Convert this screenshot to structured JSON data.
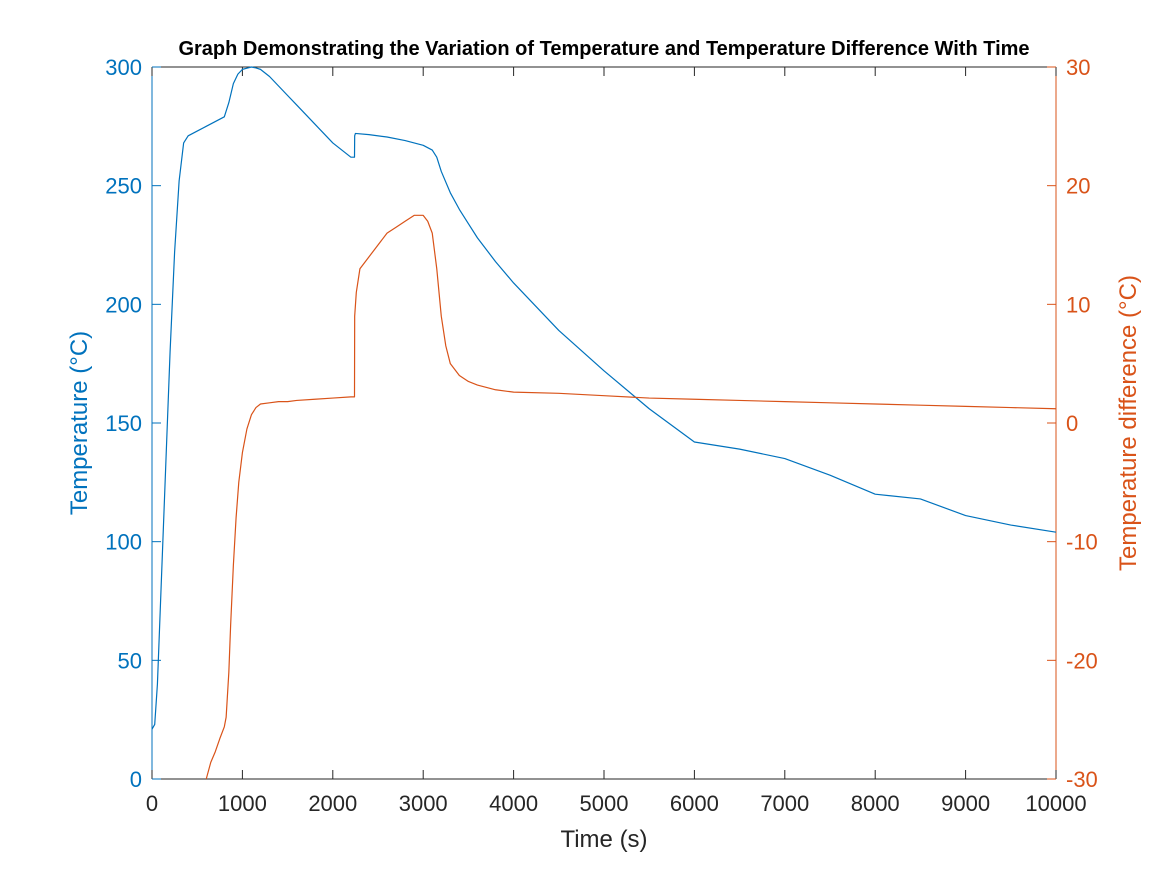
{
  "chart_data": {
    "type": "line",
    "title": "Graph Demonstrating the Variation of Temperature and Temperature Difference With Time",
    "xlabel": "Time (s)",
    "xlim": [
      0,
      10000
    ],
    "x_ticks": [
      0,
      1000,
      2000,
      3000,
      4000,
      5000,
      6000,
      7000,
      8000,
      9000,
      10000
    ],
    "y_left": {
      "label": "Temperature (°C)",
      "lim": [
        0,
        300
      ],
      "ticks": [
        0,
        50,
        100,
        150,
        200,
        250,
        300
      ],
      "color": "#0072BD"
    },
    "y_right": {
      "label": "Temperature difference (°C)",
      "lim": [
        -30,
        30
      ],
      "ticks": [
        -30,
        -20,
        -10,
        0,
        10,
        20,
        30
      ],
      "color": "#D95319"
    },
    "grid": false,
    "series": [
      {
        "axis": "left",
        "color": "#0072BD",
        "x": [
          0,
          30,
          60,
          100,
          150,
          200,
          250,
          300,
          350,
          400,
          500,
          600,
          700,
          800,
          850,
          900,
          950,
          1000,
          1050,
          1100,
          1150,
          1200,
          1300,
          1400,
          1500,
          1600,
          1700,
          1800,
          1900,
          2000,
          2100,
          2200,
          2240,
          2242,
          2250,
          2400,
          2600,
          2800,
          3000,
          3100,
          3150,
          3200,
          3300,
          3400,
          3500,
          3600,
          3800,
          4000,
          4500,
          5000,
          5500,
          6000,
          6500,
          7000,
          7500,
          8000,
          8500,
          9000,
          9500,
          10000
        ],
        "y": [
          21,
          23,
          40,
          80,
          130,
          180,
          222,
          252,
          268,
          271,
          273,
          275,
          277,
          279,
          285,
          293,
          297,
          299,
          299.5,
          300,
          299.6,
          299,
          296,
          292,
          288,
          284,
          280,
          276,
          272,
          268,
          265,
          262,
          262,
          271,
          272,
          271.5,
          270.5,
          269,
          267,
          265,
          262,
          256,
          247,
          240,
          234,
          228,
          218,
          209,
          189,
          172,
          156,
          142,
          139,
          135,
          128,
          120,
          118,
          111,
          107,
          104
        ]
      },
      {
        "axis": "right",
        "color": "#D95319",
        "x": [
          600,
          650,
          700,
          750,
          800,
          820,
          850,
          870,
          900,
          930,
          960,
          1000,
          1050,
          1100,
          1150,
          1200,
          1300,
          1400,
          1500,
          1600,
          1800,
          2000,
          2200,
          2240,
          2242,
          2260,
          2300,
          2400,
          2500,
          2600,
          2700,
          2800,
          2900,
          3000,
          3050,
          3100,
          3150,
          3200,
          3250,
          3300,
          3400,
          3500,
          3600,
          3700,
          3800,
          4000,
          4500,
          5000,
          5500,
          6000,
          6500,
          7000,
          7500,
          8000,
          8500,
          9000,
          9500,
          10000
        ],
        "y": [
          -30,
          -28.6,
          -27.7,
          -26.6,
          -25.6,
          -24.8,
          -21,
          -17,
          -12,
          -8,
          -5,
          -2.5,
          -0.5,
          0.7,
          1.3,
          1.6,
          1.7,
          1.8,
          1.8,
          1.9,
          2,
          2.1,
          2.2,
          2.2,
          9,
          11,
          13,
          14,
          15,
          16,
          16.5,
          17,
          17.5,
          17.5,
          17,
          16,
          13,
          9,
          6.5,
          5,
          4,
          3.5,
          3.2,
          3,
          2.8,
          2.6,
          2.5,
          2.3,
          2.1,
          2,
          1.9,
          1.8,
          1.7,
          1.6,
          1.5,
          1.4,
          1.3,
          1.2
        ]
      }
    ]
  }
}
